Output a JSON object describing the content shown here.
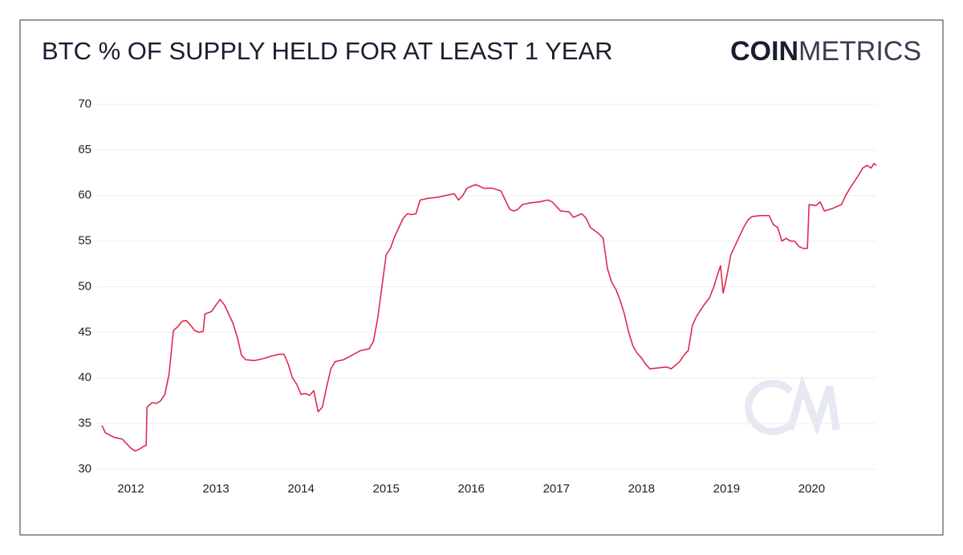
{
  "chart_data": {
    "type": "line",
    "title": "BTC % OF SUPPLY HELD FOR AT LEAST 1 YEAR",
    "brand": [
      "COIN",
      "METRICS"
    ],
    "xlim": [
      2011.66,
      2020.76
    ],
    "xticks": [
      2012,
      2013,
      2014,
      2015,
      2016,
      2017,
      2018,
      2019,
      2020
    ],
    "ylim": [
      30,
      70
    ],
    "yticks": [
      30,
      35,
      40,
      45,
      50,
      55,
      60,
      65,
      70
    ],
    "grid": true,
    "series": [
      {
        "color": "#e0294f",
        "x": [
          2011.66,
          2011.7,
          2011.8,
          2011.9,
          2011.95,
          2012.0,
          2012.05,
          2012.1,
          2012.15,
          2012.18,
          2012.19,
          2012.25,
          2012.3,
          2012.35,
          2012.4,
          2012.45,
          2012.5,
          2012.55,
          2012.6,
          2012.65,
          2012.7,
          2012.75,
          2012.8,
          2012.85,
          2012.87,
          2012.95,
          2013.0,
          2013.05,
          2013.1,
          2013.15,
          2013.2,
          2013.25,
          2013.3,
          2013.35,
          2013.45,
          2013.55,
          2013.65,
          2013.75,
          2013.8,
          2013.85,
          2013.9,
          2013.95,
          2014.0,
          2014.05,
          2014.1,
          2014.15,
          2014.2,
          2014.25,
          2014.3,
          2014.35,
          2014.4,
          2014.5,
          2014.6,
          2014.7,
          2014.8,
          2014.85,
          2014.9,
          2014.95,
          2015.0,
          2015.05,
          2015.1,
          2015.15,
          2015.2,
          2015.25,
          2015.3,
          2015.35,
          2015.4,
          2015.5,
          2015.6,
          2015.7,
          2015.8,
          2015.85,
          2015.9,
          2015.95,
          2016.0,
          2016.05,
          2016.15,
          2016.25,
          2016.35,
          2016.4,
          2016.45,
          2016.5,
          2016.55,
          2016.6,
          2016.7,
          2016.8,
          2016.9,
          2016.95,
          2017.0,
          2017.05,
          2017.15,
          2017.2,
          2017.3,
          2017.35,
          2017.4,
          2017.5,
          2017.55,
          2017.6,
          2017.65,
          2017.7,
          2017.75,
          2017.8,
          2017.85,
          2017.9,
          2017.95,
          2018.0,
          2018.05,
          2018.1,
          2018.2,
          2018.3,
          2018.35,
          2018.45,
          2018.5,
          2018.55,
          2018.6,
          2018.65,
          2018.7,
          2018.75,
          2018.8,
          2018.85,
          2018.9,
          2018.93,
          2018.96,
          2019.0,
          2019.05,
          2019.1,
          2019.15,
          2019.2,
          2019.25,
          2019.3,
          2019.4,
          2019.5,
          2019.55,
          2019.6,
          2019.65,
          2019.7,
          2019.75,
          2019.8,
          2019.85,
          2019.9,
          2019.95,
          2019.97,
          2020.05,
          2020.1,
          2020.15,
          2020.25,
          2020.35,
          2020.4,
          2020.45,
          2020.5,
          2020.55,
          2020.6,
          2020.65,
          2020.7,
          2020.73,
          2020.76
        ],
        "values": [
          34.8,
          34.0,
          33.5,
          33.3,
          32.8,
          32.3,
          32.0,
          32.2,
          32.5,
          32.6,
          36.8,
          37.3,
          37.2,
          37.5,
          38.2,
          40.5,
          45.2,
          45.6,
          46.2,
          46.3,
          45.8,
          45.2,
          45.0,
          45.1,
          47.0,
          47.3,
          48.0,
          48.6,
          48.0,
          47.0,
          46.0,
          44.5,
          42.5,
          42.0,
          41.9,
          42.1,
          42.4,
          42.6,
          42.6,
          41.5,
          40.0,
          39.3,
          38.2,
          38.3,
          38.1,
          38.6,
          36.3,
          36.8,
          39.0,
          41.0,
          41.8,
          42.0,
          42.5,
          43.0,
          43.2,
          44.0,
          46.5,
          50.0,
          53.5,
          54.2,
          55.5,
          56.5,
          57.5,
          58.0,
          57.9,
          58.0,
          59.5,
          59.7,
          59.8,
          60.0,
          60.2,
          59.5,
          60.0,
          60.8,
          61.0,
          61.2,
          60.8,
          60.8,
          60.5,
          59.5,
          58.5,
          58.3,
          58.5,
          59.0,
          59.2,
          59.3,
          59.5,
          59.3,
          58.8,
          58.3,
          58.2,
          57.6,
          58.0,
          57.5,
          56.5,
          55.8,
          55.3,
          52.0,
          50.5,
          49.7,
          48.5,
          47.0,
          45.0,
          43.5,
          42.7,
          42.2,
          41.5,
          41.0,
          41.1,
          41.2,
          41.0,
          41.8,
          42.5,
          43.0,
          45.8,
          46.8,
          47.5,
          48.2,
          48.8,
          50.0,
          51.5,
          52.3,
          49.3,
          51.0,
          53.5,
          54.5,
          55.5,
          56.5,
          57.3,
          57.7,
          57.8,
          57.8,
          56.8,
          56.5,
          55.0,
          55.3,
          55.0,
          55.0,
          54.4,
          54.2,
          54.2,
          59.0,
          58.9,
          59.3,
          58.3,
          58.6,
          59.0,
          60.0,
          60.8,
          61.5,
          62.2,
          63.0,
          63.3,
          63.0,
          63.5,
          63.3
        ]
      }
    ]
  }
}
